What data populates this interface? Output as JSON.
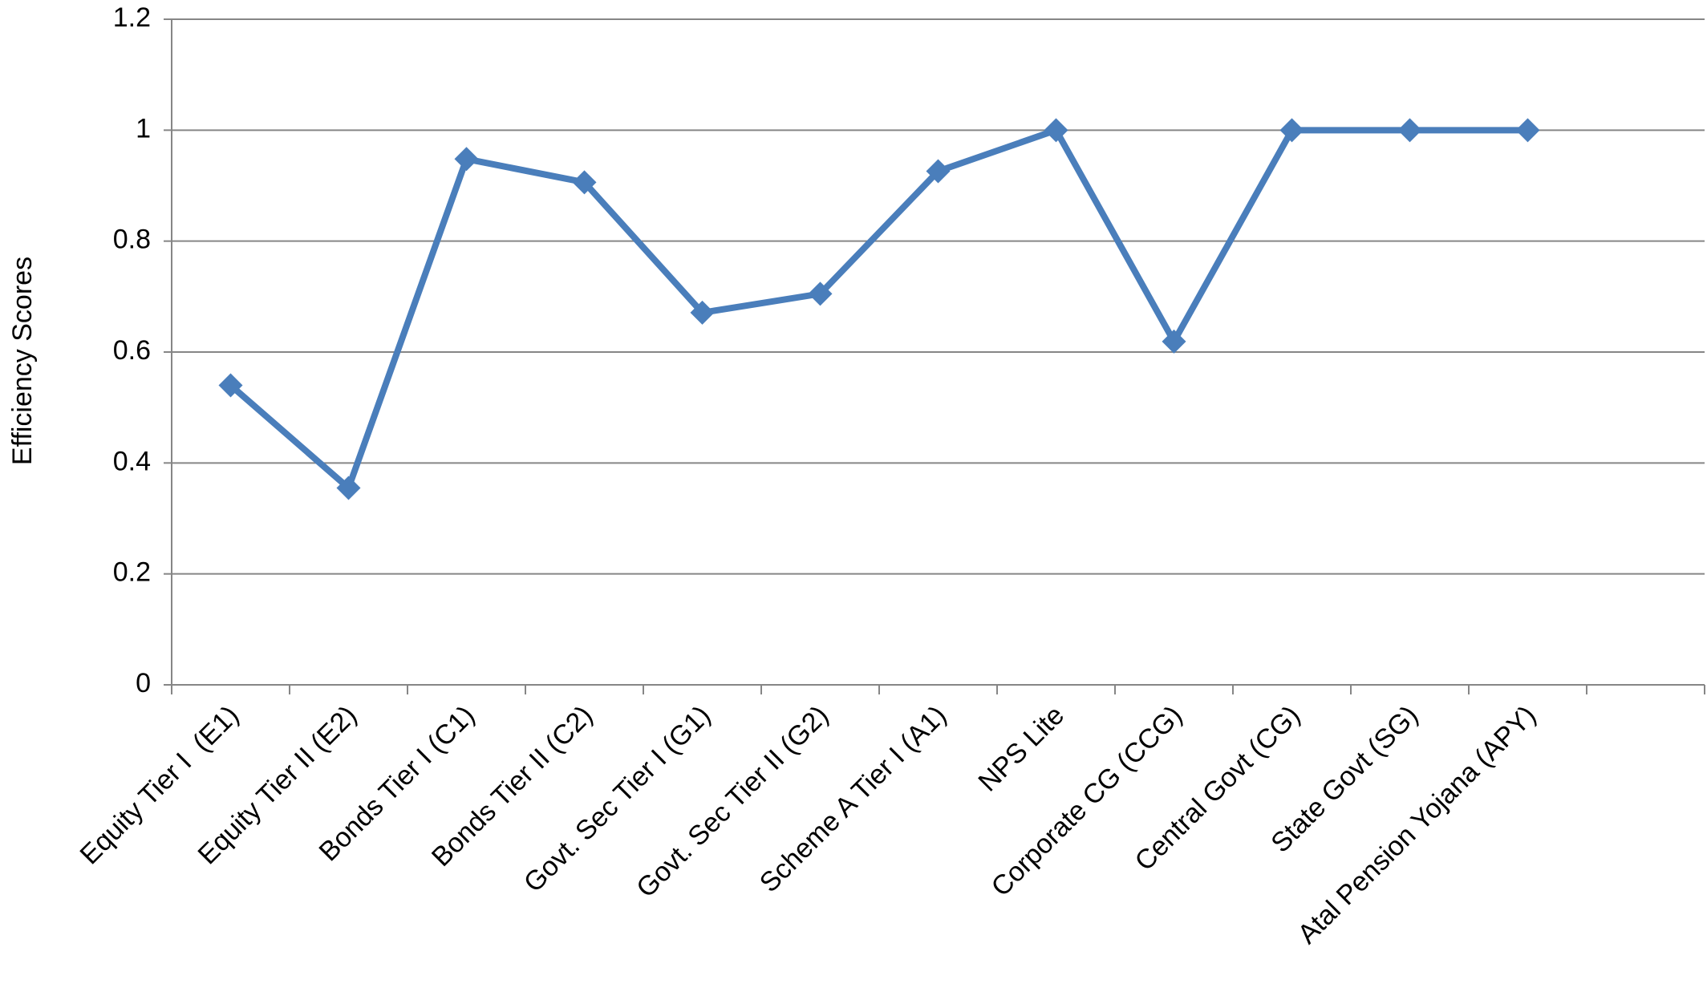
{
  "chart_data": {
    "type": "line",
    "y_label": "Efficiency Scores",
    "categories": [
      "Equity Tier I  (E1)",
      "Equity Tier II (E2)",
      "Bonds Tier I (C1)",
      "Bonds Tier II (C2)",
      "Govt. Sec Tier I (G1)",
      "Govt. Sec Tier II (G2)",
      "Scheme A Tier I (A1)",
      "NPS Lite",
      "Corporate CG (CCG)",
      "Central Govt (CG)",
      "State Govt (SG)",
      "Atal Pension Yojana (APY)",
      null
    ],
    "values": [
      0.54,
      0.355,
      0.948,
      0.906,
      0.671,
      0.705,
      0.926,
      1,
      0.619,
      1,
      1,
      1,
      null
    ],
    "color": "#4a7ebb",
    "ylim": [
      0,
      1.2
    ],
    "yticks": [
      0,
      0.2,
      0.4,
      0.6,
      0.8,
      1,
      {
        "value": 1.2,
        "label": "1.2"
      }
    ],
    "grid": true
  }
}
